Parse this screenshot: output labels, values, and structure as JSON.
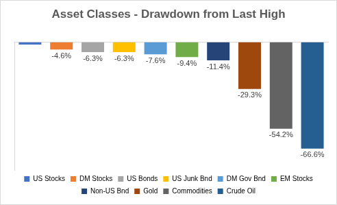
{
  "chart_data": {
    "type": "bar",
    "title": "Asset Classes - Drawdown from Last High",
    "categories": [
      "US Stocks",
      "DM Stocks",
      "US Bonds",
      "US Junk Bnd",
      "DM Gov Bnd",
      "EM Stocks",
      "Non-US Bnd",
      "Gold",
      "Commodities",
      "Crude Oil"
    ],
    "values": [
      -1.5,
      -4.6,
      -6.3,
      -6.3,
      -7.6,
      -9.4,
      -11.4,
      -29.3,
      -54.2,
      -66.6
    ],
    "value_labels": [
      null,
      "-4.6%",
      "-6.3%",
      "-6.3%",
      "-7.6%",
      "-9.4%",
      "-11.4%",
      "-29.3%",
      "-54.2%",
      "-66.6%"
    ],
    "colors": [
      "#4472c4",
      "#ed7d31",
      "#a5a5a5",
      "#ffc000",
      "#5b9bd5",
      "#70ad47",
      "#264478",
      "#9e480e",
      "#636363",
      "#255e91"
    ],
    "ylim": [
      -80,
      0
    ],
    "grid": false,
    "legend": "bottom",
    "data_labels": true,
    "tick_labels": false
  }
}
